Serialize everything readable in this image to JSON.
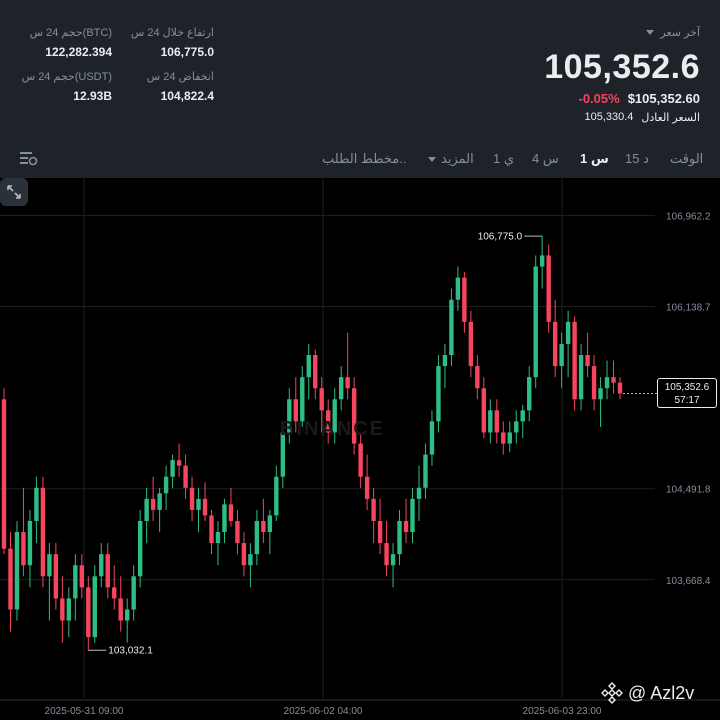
{
  "stats": {
    "vol_btc_label": "حجم 24 س(BTC)",
    "vol_btc_value": "122,282.394",
    "high_label": "ارتفاع خلال 24 س",
    "high_value": "106,775.0",
    "vol_usdt_label": "حجم 24 س(USDT)",
    "vol_usdt_value": "12.93B",
    "low_label": "انخفاض 24 س",
    "low_value": "104,822.4"
  },
  "ticker": {
    "last_price_label": "آخر سعر",
    "last_price": "105,352.6",
    "change_pct": "-0.05%",
    "usd_price": "$105,352.60",
    "fair_label": "السعر العادل",
    "fair_price": "105,330.4"
  },
  "tabs": {
    "time": "الوقت",
    "m15": "15 د",
    "h1": "1 س",
    "h4": "4 س",
    "d1": "1 ي",
    "more": "المزيد",
    "orderbook": "مخطط الطلب.."
  },
  "chart_data": {
    "type": "candlestick",
    "y_ticks": [
      "106,962.2",
      "106,138.7",
      "104,491.8",
      "103,668.4"
    ],
    "y_tick_values": [
      106962.2,
      106138.7,
      104491.8,
      103668.4
    ],
    "x_ticks": [
      "2025-05-31 09:00",
      "2025-06-02 04:00",
      "2025-06-03 23:00"
    ],
    "high_marker": "106,775.0",
    "low_marker": "103,032.1",
    "current_price": "105,352.6",
    "countdown": "57:17",
    "ylim": [
      102600,
      107300
    ],
    "up_color": "#2ebd85",
    "down_color": "#f6465d",
    "watermark": "BINANCE",
    "candles": [
      [
        105300,
        105400,
        103900,
        103950
      ],
      [
        103950,
        104100,
        103200,
        103400
      ],
      [
        103400,
        104200,
        103300,
        104100
      ],
      [
        104100,
        104500,
        103700,
        103800
      ],
      [
        103800,
        104300,
        103600,
        104200
      ],
      [
        104200,
        104600,
        104000,
        104500
      ],
      [
        104500,
        104600,
        103600,
        103700
      ],
      [
        103700,
        104000,
        103300,
        103900
      ],
      [
        103900,
        104000,
        103400,
        103500
      ],
      [
        103500,
        103700,
        103100,
        103300
      ],
      [
        103300,
        103600,
        103150,
        103500
      ],
      [
        103500,
        103900,
        103300,
        103800
      ],
      [
        103800,
        103900,
        103500,
        103600
      ],
      [
        103600,
        103700,
        103032,
        103150
      ],
      [
        103150,
        103800,
        103100,
        103700
      ],
      [
        103700,
        104000,
        103600,
        103900
      ],
      [
        103900,
        104000,
        103500,
        103600
      ],
      [
        103600,
        103800,
        103400,
        103500
      ],
      [
        103500,
        103700,
        103200,
        103300
      ],
      [
        103300,
        103500,
        103100,
        103400
      ],
      [
        103400,
        103800,
        103300,
        103700
      ],
      [
        103700,
        104300,
        103600,
        104200
      ],
      [
        104200,
        104500,
        104000,
        104400
      ],
      [
        104400,
        104600,
        104200,
        104300
      ],
      [
        104300,
        104500,
        104100,
        104450
      ],
      [
        104450,
        104700,
        104300,
        104600
      ],
      [
        104600,
        104800,
        104500,
        104750
      ],
      [
        104750,
        104900,
        104600,
        104700
      ],
      [
        104700,
        104800,
        104400,
        104500
      ],
      [
        104500,
        104600,
        104200,
        104300
      ],
      [
        104300,
        104500,
        104100,
        104400
      ],
      [
        104400,
        104550,
        104200,
        104250
      ],
      [
        104250,
        104300,
        103900,
        104000
      ],
      [
        104000,
        104200,
        103800,
        104100
      ],
      [
        104100,
        104400,
        104000,
        104350
      ],
      [
        104350,
        104500,
        104150,
        104200
      ],
      [
        104200,
        104300,
        103900,
        104000
      ],
      [
        104000,
        104100,
        103700,
        103800
      ],
      [
        103800,
        104000,
        103600,
        103900
      ],
      [
        103900,
        104300,
        103800,
        104200
      ],
      [
        104200,
        104400,
        104000,
        104100
      ],
      [
        104100,
        104300,
        103900,
        104250
      ],
      [
        104250,
        104700,
        104200,
        104600
      ],
      [
        104600,
        105100,
        104500,
        105000
      ],
      [
        105000,
        105400,
        104900,
        105300
      ],
      [
        105300,
        105500,
        105000,
        105100
      ],
      [
        105100,
        105600,
        105050,
        105500
      ],
      [
        105500,
        105800,
        105300,
        105700
      ],
      [
        105700,
        105750,
        105300,
        105400
      ],
      [
        105400,
        105500,
        105000,
        105200
      ],
      [
        105200,
        105300,
        104900,
        105000
      ],
      [
        105000,
        105400,
        104900,
        105300
      ],
      [
        105300,
        105600,
        105200,
        105500
      ],
      [
        105500,
        105900,
        105300,
        105400
      ],
      [
        105400,
        105500,
        104800,
        104900
      ],
      [
        104900,
        105000,
        104500,
        104600
      ],
      [
        104600,
        104800,
        104300,
        104400
      ],
      [
        104400,
        104500,
        104000,
        104200
      ],
      [
        104200,
        104400,
        103900,
        104000
      ],
      [
        104000,
        104200,
        103700,
        103800
      ],
      [
        103800,
        104000,
        103600,
        103900
      ],
      [
        103900,
        104300,
        103800,
        104200
      ],
      [
        104200,
        104400,
        104000,
        104100
      ],
      [
        104100,
        104500,
        104000,
        104400
      ],
      [
        104400,
        104700,
        104200,
        104500
      ],
      [
        104500,
        104900,
        104400,
        104800
      ],
      [
        104800,
        105200,
        104700,
        105100
      ],
      [
        105100,
        105700,
        105000,
        105600
      ],
      [
        105600,
        105800,
        105400,
        105700
      ],
      [
        105700,
        106300,
        105600,
        106200
      ],
      [
        106200,
        106500,
        106100,
        106400
      ],
      [
        106400,
        106450,
        105900,
        106000
      ],
      [
        106000,
        106100,
        105500,
        105600
      ],
      [
        105600,
        105700,
        105300,
        105400
      ],
      [
        105400,
        105500,
        104950,
        105000
      ],
      [
        105000,
        105300,
        104900,
        105200
      ],
      [
        105200,
        105300,
        104900,
        105000
      ],
      [
        105000,
        105100,
        104800,
        104900
      ],
      [
        104900,
        105100,
        104822,
        105000
      ],
      [
        105000,
        105200,
        104900,
        105100
      ],
      [
        105100,
        105250,
        104950,
        105200
      ],
      [
        105200,
        105600,
        105100,
        105500
      ],
      [
        105500,
        106600,
        105400,
        106500
      ],
      [
        106500,
        106775,
        106300,
        106600
      ],
      [
        106600,
        106700,
        105900,
        106000
      ],
      [
        106000,
        106200,
        105500,
        105600
      ],
      [
        105600,
        105900,
        105400,
        105800
      ],
      [
        105800,
        106100,
        105500,
        106000
      ],
      [
        106000,
        106050,
        105200,
        105300
      ],
      [
        105300,
        105800,
        105200,
        105700
      ],
      [
        105700,
        105900,
        105500,
        105600
      ],
      [
        105600,
        105700,
        105200,
        105300
      ],
      [
        105300,
        105500,
        105050,
        105400
      ],
      [
        105400,
        105650,
        105300,
        105500
      ],
      [
        105500,
        105650,
        105350,
        105450
      ],
      [
        105450,
        105500,
        105300,
        105352.6
      ]
    ]
  }
}
